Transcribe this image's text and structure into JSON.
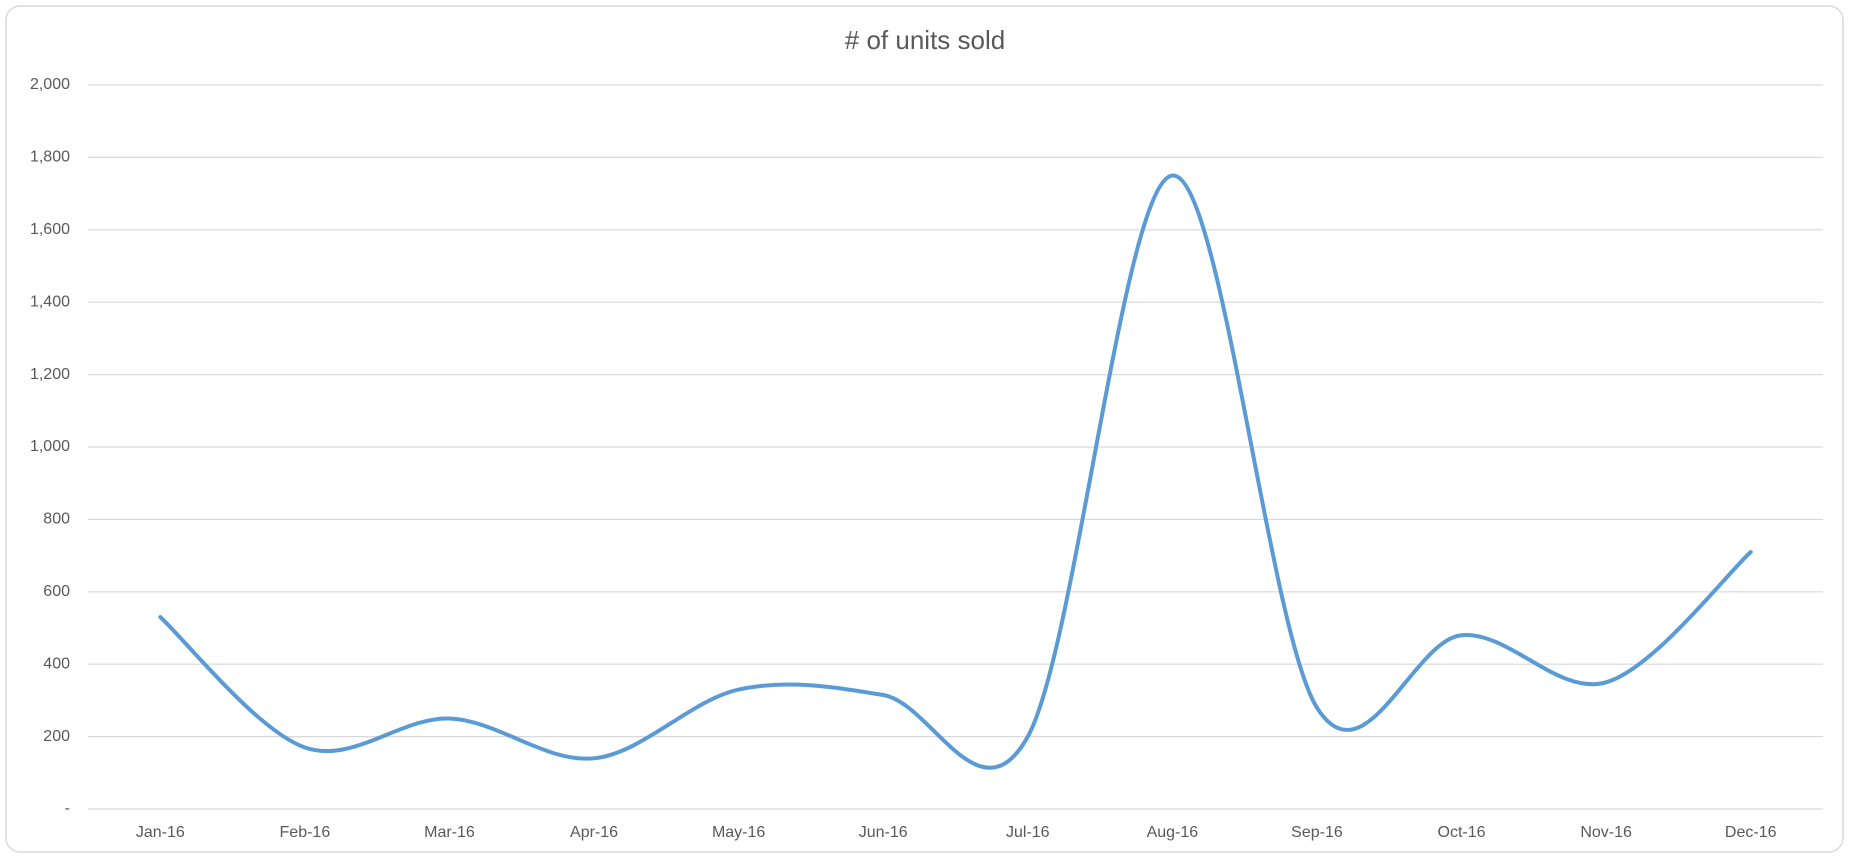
{
  "chart_data": {
    "type": "line",
    "title": "# of units sold",
    "categories": [
      "Jan-16",
      "Feb-16",
      "Mar-16",
      "Apr-16",
      "May-16",
      "Jun-16",
      "Jul-16",
      "Aug-16",
      "Sep-16",
      "Oct-16",
      "Nov-16",
      "Dec-16"
    ],
    "series": [
      {
        "name": "# of units sold",
        "color": "#5b9bd5",
        "values": [
          530,
          170,
          250,
          140,
          330,
          315,
          200,
          1750,
          280,
          480,
          350,
          710
        ]
      }
    ],
    "ylim": [
      0,
      2000
    ],
    "yticks": [
      {
        "value": 0,
        "label": "-"
      },
      {
        "value": 200,
        "label": "200"
      },
      {
        "value": 400,
        "label": "400"
      },
      {
        "value": 600,
        "label": "600"
      },
      {
        "value": 800,
        "label": "800"
      },
      {
        "value": 1000,
        "label": "1,000"
      },
      {
        "value": 1200,
        "label": "1,200"
      },
      {
        "value": 1400,
        "label": "1,400"
      },
      {
        "value": 1600,
        "label": "1,600"
      },
      {
        "value": 1800,
        "label": "1,800"
      },
      {
        "value": 2000,
        "label": "2,000"
      }
    ],
    "grid": true,
    "smooth": true
  }
}
